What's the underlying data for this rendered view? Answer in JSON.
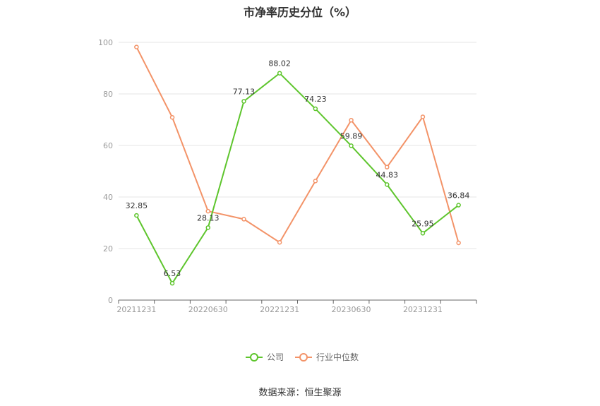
{
  "chart_data": {
    "type": "line",
    "title": "市净率历史分位（%）",
    "x": [
      "20211231",
      "20220331",
      "20220630",
      "20220930",
      "20221231",
      "20230331",
      "20230630",
      "20230930",
      "20231231",
      "20240331"
    ],
    "x_tick_labels": [
      "20211231",
      "20220630",
      "20221231",
      "20230630",
      "20231231"
    ],
    "ylim": [
      0,
      100
    ],
    "yticks": [
      0,
      20,
      40,
      60,
      80,
      100
    ],
    "grid": true,
    "legend_position": "bottom",
    "series": [
      {
        "name": "公司",
        "color": "#5ec52d",
        "values": [
          32.85,
          6.53,
          28.13,
          77.13,
          88.02,
          74.23,
          59.89,
          44.83,
          25.95,
          36.84
        ],
        "labels": [
          "32.85",
          "6.53",
          "28.13",
          "77.13",
          "88.02",
          "74.23",
          "59.89",
          "44.83",
          "25.95",
          "36.84"
        ]
      },
      {
        "name": "行业中位数",
        "color": "#f39368",
        "values": [
          98.2,
          70.9,
          34.5,
          31.4,
          22.4,
          46.2,
          69.8,
          51.6,
          71.1,
          22.2
        ]
      }
    ]
  },
  "source": "数据来源：恒生聚源"
}
